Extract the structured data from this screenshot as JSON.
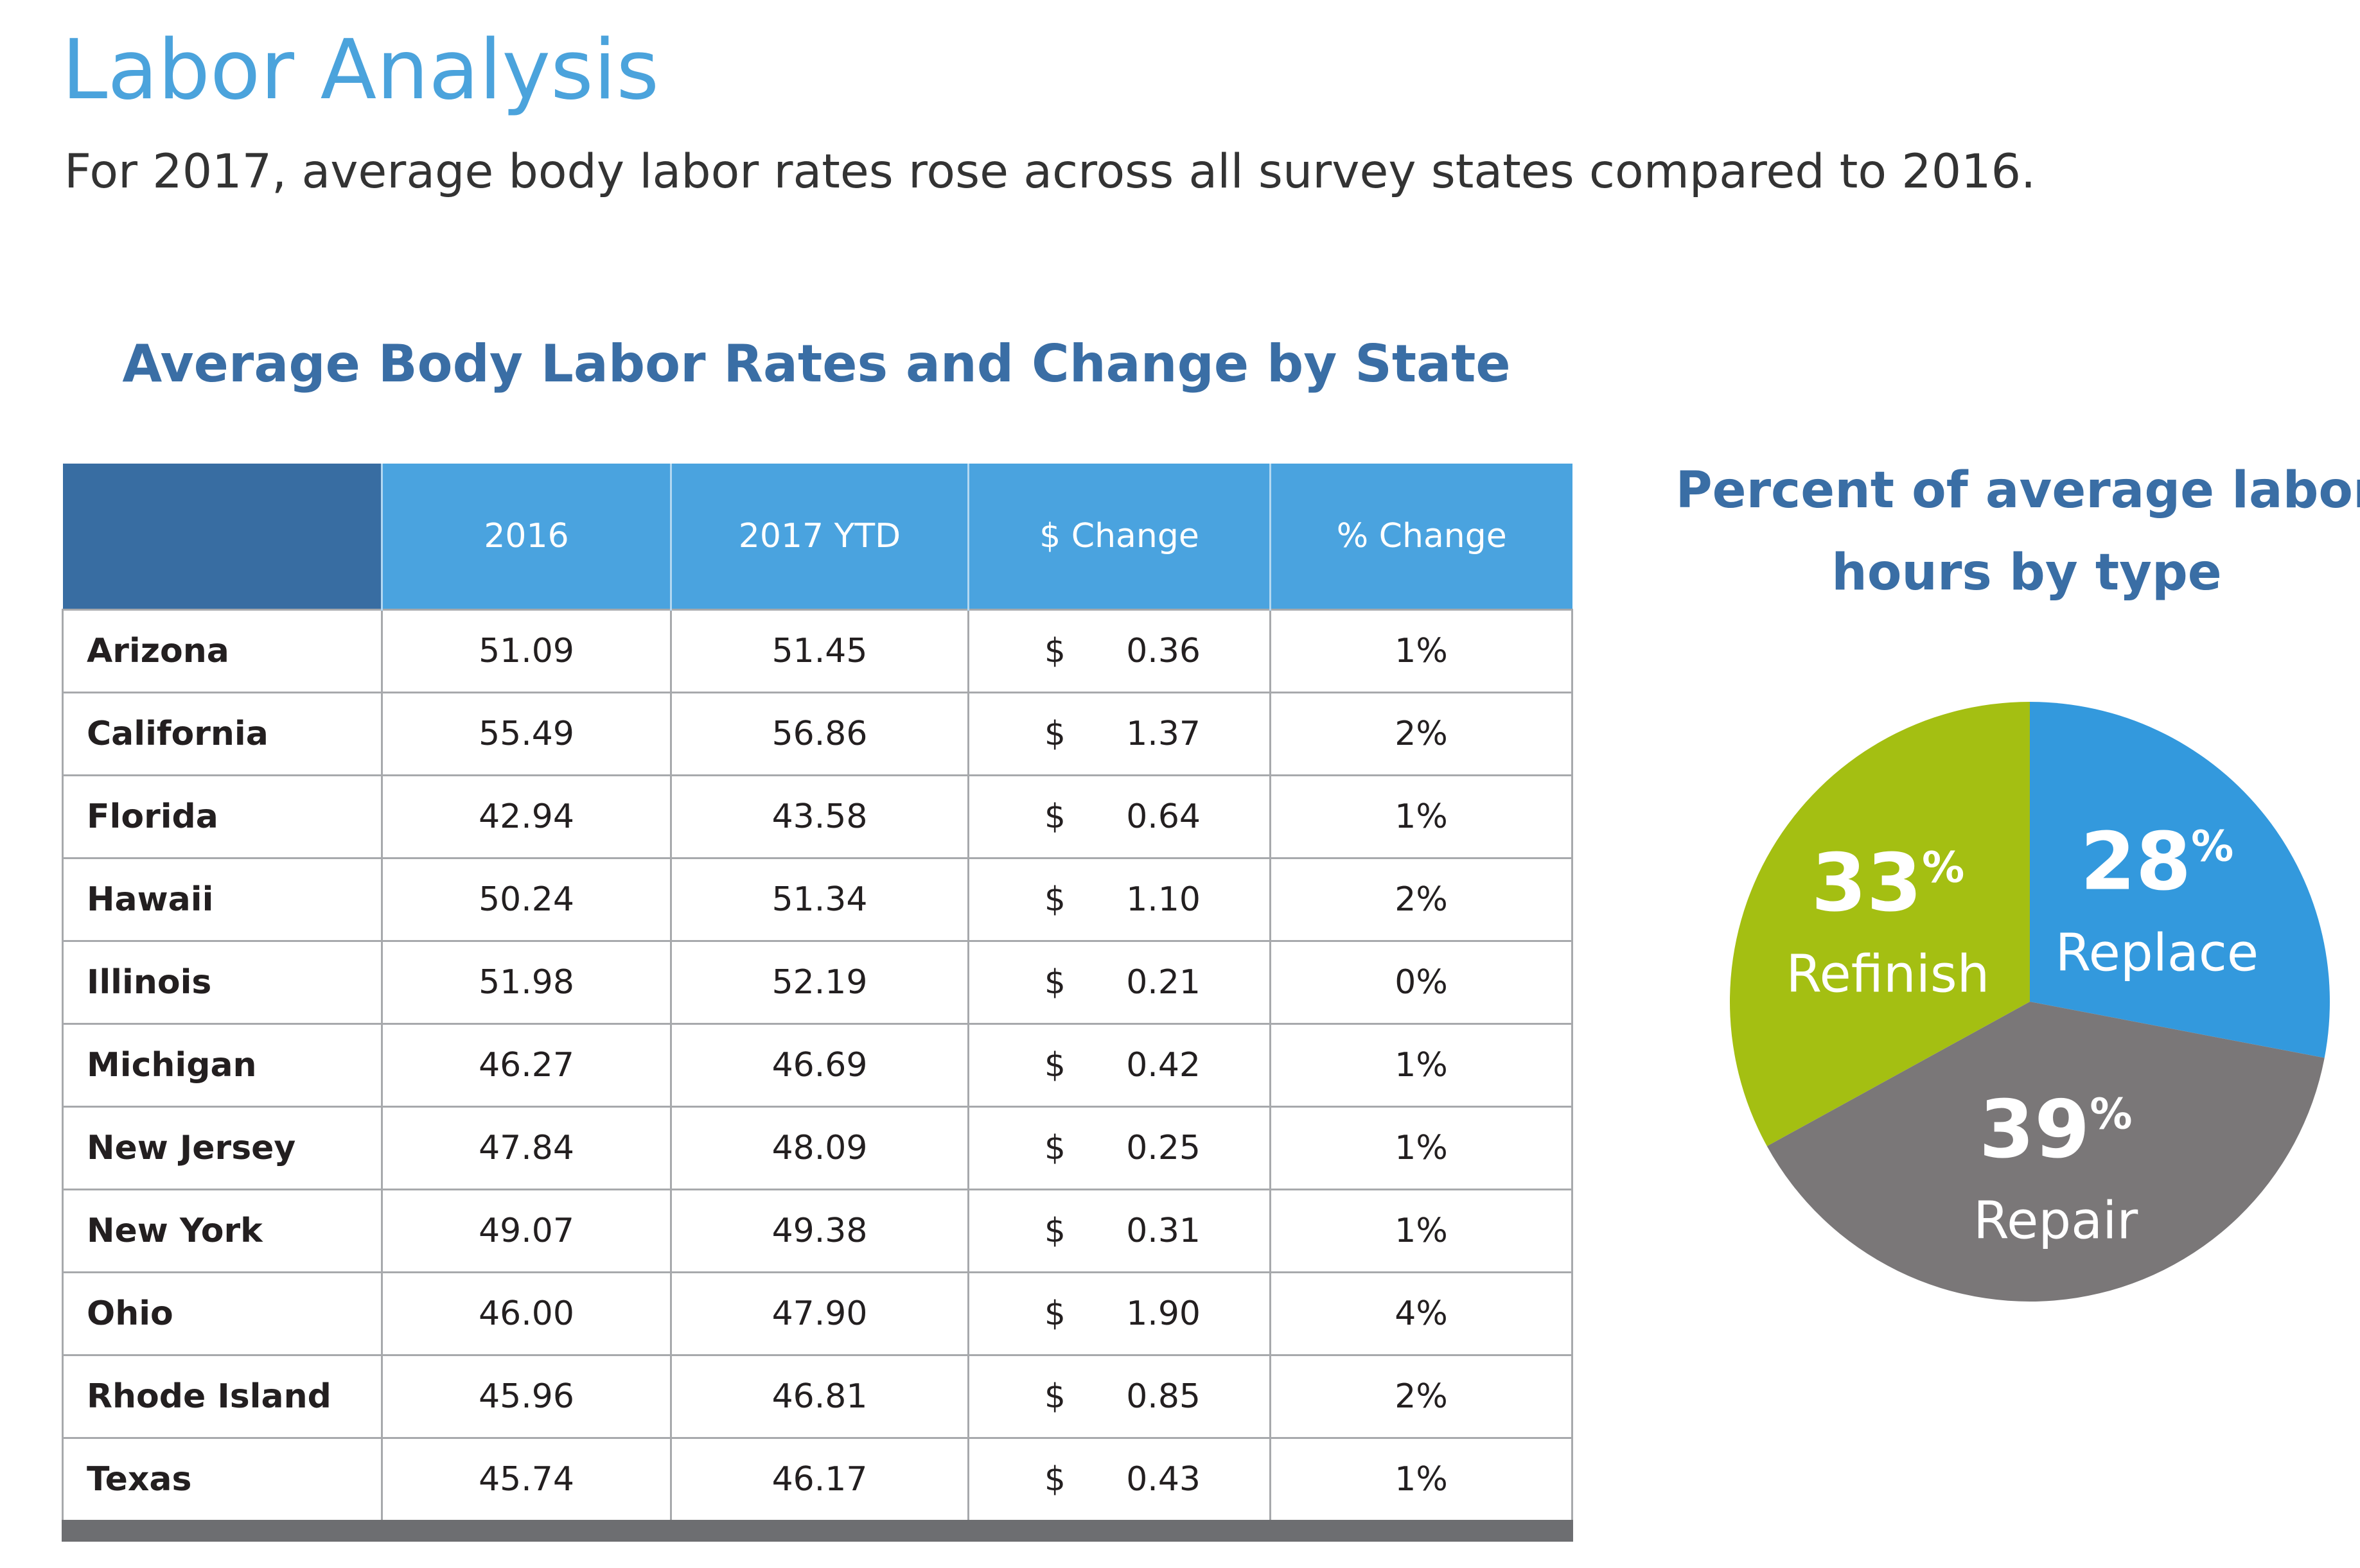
{
  "page": {
    "title": "Labor Analysis",
    "intro": "For 2017, average body labor rates rose across all survey states compared to 2016."
  },
  "chart_data": [
    {
      "type": "table",
      "title": "Average Body Labor Rates and Change by State",
      "columns": [
        "",
        "2016",
        "2017 YTD",
        "$ Change",
        "% Change"
      ],
      "currency_symbol": "$",
      "rows": [
        {
          "state": "Arizona",
          "y2016": "51.09",
          "y2017": "51.45",
          "change": "0.36",
          "pct": "1%"
        },
        {
          "state": "California",
          "y2016": "55.49",
          "y2017": "56.86",
          "change": "1.37",
          "pct": "2%"
        },
        {
          "state": "Florida",
          "y2016": "42.94",
          "y2017": "43.58",
          "change": "0.64",
          "pct": "1%"
        },
        {
          "state": "Hawaii",
          "y2016": "50.24",
          "y2017": "51.34",
          "change": "1.10",
          "pct": "2%"
        },
        {
          "state": "Illinois",
          "y2016": "51.98",
          "y2017": "52.19",
          "change": "0.21",
          "pct": "0%"
        },
        {
          "state": "Michigan",
          "y2016": "46.27",
          "y2017": "46.69",
          "change": "0.42",
          "pct": "1%"
        },
        {
          "state": "New Jersey",
          "y2016": "47.84",
          "y2017": "48.09",
          "change": "0.25",
          "pct": "1%"
        },
        {
          "state": "New York",
          "y2016": "49.07",
          "y2017": "49.38",
          "change": "0.31",
          "pct": "1%"
        },
        {
          "state": "Ohio",
          "y2016": "46.00",
          "y2017": "47.90",
          "change": "1.90",
          "pct": "4%"
        },
        {
          "state": "Rhode Island",
          "y2016": "45.96",
          "y2017": "46.81",
          "change": "0.85",
          "pct": "2%"
        },
        {
          "state": "Texas",
          "y2016": "45.74",
          "y2017": "46.17",
          "change": "0.43",
          "pct": "1%"
        }
      ],
      "colors": {
        "header": "#4aa3df",
        "corner": "#386da2",
        "footer_bar": "#6d6e71",
        "grid": "#a7a9ac"
      }
    },
    {
      "type": "pie",
      "title_lines": [
        "Percent of average labor",
        "hours by type"
      ],
      "unit": "%",
      "slices": [
        {
          "label": "Replace",
          "value": 28,
          "color": "#3399dd"
        },
        {
          "label": "Repair",
          "value": 39,
          "color": "#7a7778"
        },
        {
          "label": "Refinish",
          "value": 33,
          "color": "#a4bf12"
        }
      ]
    }
  ]
}
